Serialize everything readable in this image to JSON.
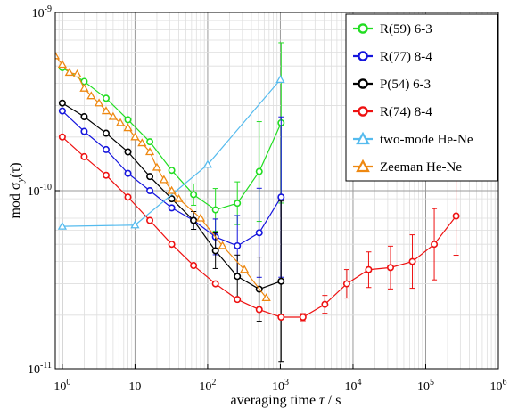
{
  "chart_data": {
    "type": "line",
    "x_scale": "log",
    "y_scale": "log",
    "xlim": [
      0.8,
      1000000
    ],
    "ylim": [
      1e-11,
      1e-09
    ],
    "x_tick_labels": [
      {
        "value": 1,
        "base": "10",
        "exp": "0"
      },
      {
        "value": 10,
        "base": "10",
        "exp": ""
      },
      {
        "value": 100,
        "base": "10",
        "exp": "2"
      },
      {
        "value": 1000,
        "base": "10",
        "exp": "3"
      },
      {
        "value": 10000,
        "base": "10",
        "exp": "4"
      },
      {
        "value": 100000,
        "base": "10",
        "exp": "5"
      },
      {
        "value": 1000000,
        "base": "10",
        "exp": "6"
      }
    ],
    "y_tick_labels": [
      {
        "value": 1e-09,
        "base": "10",
        "exp": "-9"
      },
      {
        "value": 1e-10,
        "base": "10",
        "exp": "-10"
      },
      {
        "value": 1e-11,
        "base": "10",
        "exp": "-11"
      }
    ],
    "xlabel": {
      "prefix": "averaging time ",
      "symbol": "τ",
      "suffix": " / s"
    },
    "ylabel": {
      "prefix": "mod σ",
      "subscript": "y",
      "suffix": "(τ)"
    },
    "grid": true,
    "legend_position": "top-right",
    "series": [
      {
        "name": "R(59) 6-3",
        "color": "#22dd22",
        "marker": "circle",
        "x": [
          1,
          2,
          4,
          8,
          16,
          32,
          64,
          128,
          256,
          512,
          1024
        ],
        "y": [
          4.9e-10,
          4.1e-10,
          3.3e-10,
          2.5e-10,
          1.88e-10,
          1.3e-10,
          9.5e-11,
          7.8e-11,
          8.5e-11,
          1.28e-10,
          2.4e-10
        ],
        "err": [
          0,
          0,
          0,
          0,
          0,
          0,
          0.06,
          0.12,
          0.12,
          0.28,
          0.45
        ]
      },
      {
        "name": "R(77) 8-4",
        "color": "#1515dd",
        "marker": "circle",
        "x": [
          1,
          2,
          4,
          8,
          16,
          32,
          64,
          128,
          256,
          512,
          1024
        ],
        "y": [
          2.8e-10,
          2.15e-10,
          1.7e-10,
          1.25e-10,
          1e-10,
          8e-11,
          6.8e-11,
          5.5e-11,
          4.9e-11,
          5.8e-11,
          9.2e-11
        ],
        "err": [
          0,
          0,
          0,
          0,
          0,
          0,
          0.05,
          0.1,
          0.17,
          0.25,
          0.45
        ]
      },
      {
        "name": "P(54) 6-3",
        "color": "#000000",
        "marker": "circle",
        "x": [
          1,
          2,
          4,
          8,
          16,
          32,
          64,
          128,
          256,
          512,
          1024
        ],
        "y": [
          3.1e-10,
          2.6e-10,
          2.1e-10,
          1.65e-10,
          1.2e-10,
          9e-11,
          6.8e-11,
          4.6e-11,
          3.3e-11,
          2.8e-11,
          3.1e-11
        ],
        "err": [
          0,
          0,
          0,
          0,
          0,
          0,
          0.05,
          0.1,
          0.12,
          0.18,
          0.45
        ]
      },
      {
        "name": "R(74) 8-4",
        "color": "#ee1111",
        "marker": "circle",
        "x": [
          1,
          2,
          4,
          8,
          16,
          32,
          64,
          128,
          256,
          512,
          1024,
          2048,
          4096,
          8192,
          16384,
          32768,
          65536,
          131072,
          262144
        ],
        "y": [
          2e-10,
          1.55e-10,
          1.22e-10,
          9.2e-11,
          6.8e-11,
          5e-11,
          3.8e-11,
          3e-11,
          2.45e-11,
          2.15e-11,
          1.95e-11,
          1.95e-11,
          2.3e-11,
          3e-11,
          3.6e-11,
          3.7e-11,
          4e-11,
          5e-11,
          7.2e-11
        ],
        "err": [
          0,
          0,
          0,
          0,
          0,
          0,
          0,
          0,
          0,
          0,
          0,
          0.02,
          0.05,
          0.08,
          0.1,
          0.12,
          0.15,
          0.2,
          0.22
        ]
      },
      {
        "name": "two-mode He-Ne",
        "color": "#55bbee",
        "marker": "triangle",
        "x": [
          1,
          10,
          100,
          1000
        ],
        "y": [
          6.3e-11,
          6.4e-11,
          1.4e-10,
          4.2e-10
        ],
        "err": [
          0,
          0,
          0,
          0
        ]
      },
      {
        "name": "Zeeman He-Ne",
        "color": "#ee8811",
        "marker": "triangle",
        "x": [
          0.8,
          1.0,
          1.25,
          1.6,
          2.0,
          2.5,
          3.2,
          4.0,
          5.0,
          6.3,
          8.0,
          10,
          12.5,
          16,
          20,
          25,
          32,
          40,
          80,
          160,
          320,
          640
        ],
        "y": [
          5.7e-10,
          5.1e-10,
          4.6e-10,
          4.5e-10,
          3.75e-10,
          3.4e-10,
          3.1e-10,
          2.8e-10,
          2.6e-10,
          2.4e-10,
          2.25e-10,
          2e-10,
          1.85e-10,
          1.65e-10,
          1.35e-10,
          1.15e-10,
          1e-10,
          9e-11,
          7e-11,
          4.9e-11,
          3.6e-11,
          2.5e-11
        ],
        "err": []
      }
    ]
  }
}
